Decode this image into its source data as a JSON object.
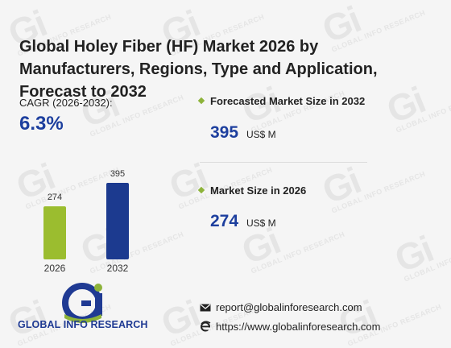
{
  "title": "Global Holey Fiber (HF) Market 2026 by Manufacturers, Regions, Type and Application, Forecast to 2032",
  "cagr": {
    "label": "CAGR (2026-2032):",
    "value": "6.3%"
  },
  "stats": [
    {
      "label": "Forecasted Market Size in 2032",
      "value": "395",
      "unit": "US$ M"
    },
    {
      "label": "Market Size in 2026",
      "value": "274",
      "unit": "US$ M"
    }
  ],
  "chart_data": {
    "type": "bar",
    "categories": [
      "2026",
      "2032"
    ],
    "values": [
      274,
      395
    ],
    "data_labels": [
      "274",
      "395"
    ],
    "colors": [
      "#9bbd2f",
      "#1c3a8f"
    ],
    "title": "",
    "xlabel": "",
    "ylabel": "",
    "ylim": [
      0,
      395
    ],
    "grid": false
  },
  "brand": {
    "logo_text": "GLOBAL INFO RESEARCH",
    "watermark_text": "GLOBAL INFO RESEARCH"
  },
  "contact": {
    "email": "report@globalinforesearch.com",
    "website": "https://www.globalinforesearch.com",
    "email_icon": "envelope-icon",
    "web_icon": "globe-e-icon"
  },
  "colors": {
    "accent_blue": "#1d3f9e",
    "accent_green": "#8db33a",
    "background": "#f5f5f5"
  }
}
